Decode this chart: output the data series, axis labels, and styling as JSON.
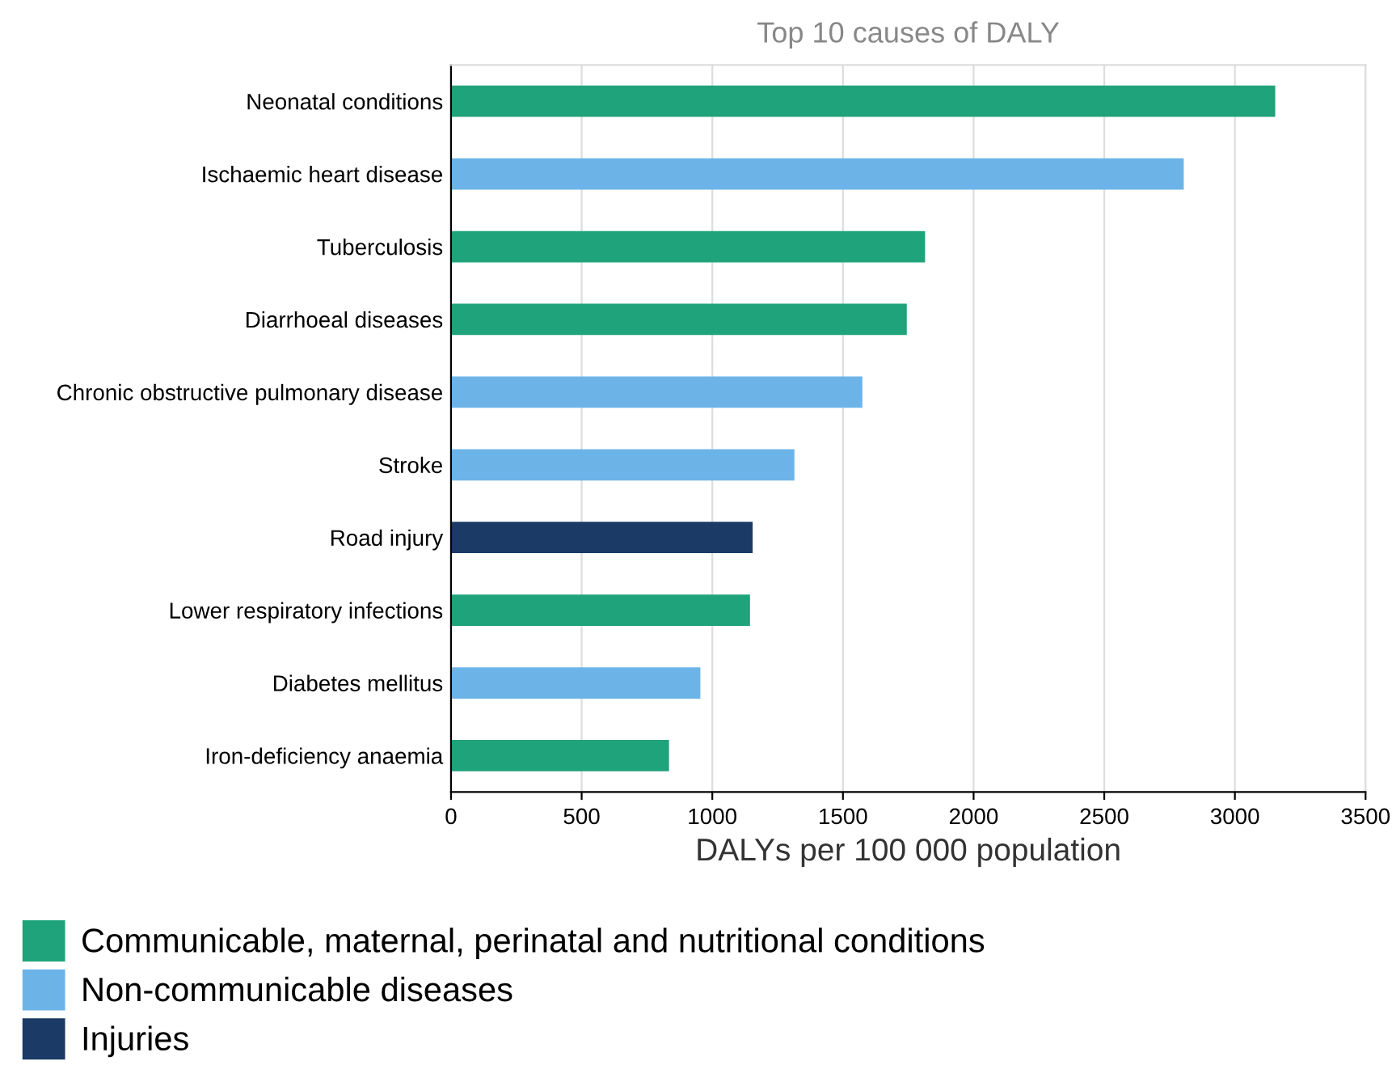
{
  "chart_data": {
    "type": "bar",
    "orientation": "horizontal",
    "title": "Top 10 causes of DALY",
    "xlabel": "DALYs per 100 000 population",
    "categories": [
      "Neonatal conditions",
      "Ischaemic heart disease",
      "Tuberculosis",
      "Diarrhoeal diseases",
      "Chronic obstructive pulmonary disease",
      "Stroke",
      "Road injury",
      "Lower respiratory infections",
      "Diabetes mellitus",
      "Iron-deficiency anaemia"
    ],
    "series": [
      {
        "name": "Communicable, maternal, perinatal and nutritional conditions",
        "color": "#1fa37a",
        "values": [
          3150,
          null,
          1810,
          1740,
          null,
          null,
          null,
          1140,
          null,
          830
        ]
      },
      {
        "name": "Non-communicable diseases",
        "color": "#6cb4e8",
        "values": [
          null,
          2800,
          null,
          null,
          1570,
          1310,
          null,
          null,
          950,
          null
        ]
      },
      {
        "name": "Injuries",
        "color": "#1b3a66",
        "values": [
          null,
          null,
          null,
          null,
          null,
          null,
          1150,
          null,
          null,
          null
        ]
      }
    ],
    "xlim": [
      0,
      3500
    ],
    "xticks": [
      0,
      500,
      1000,
      1500,
      2000,
      2500,
      3000,
      3500
    ],
    "grid": "x",
    "legend": "bottom left"
  }
}
